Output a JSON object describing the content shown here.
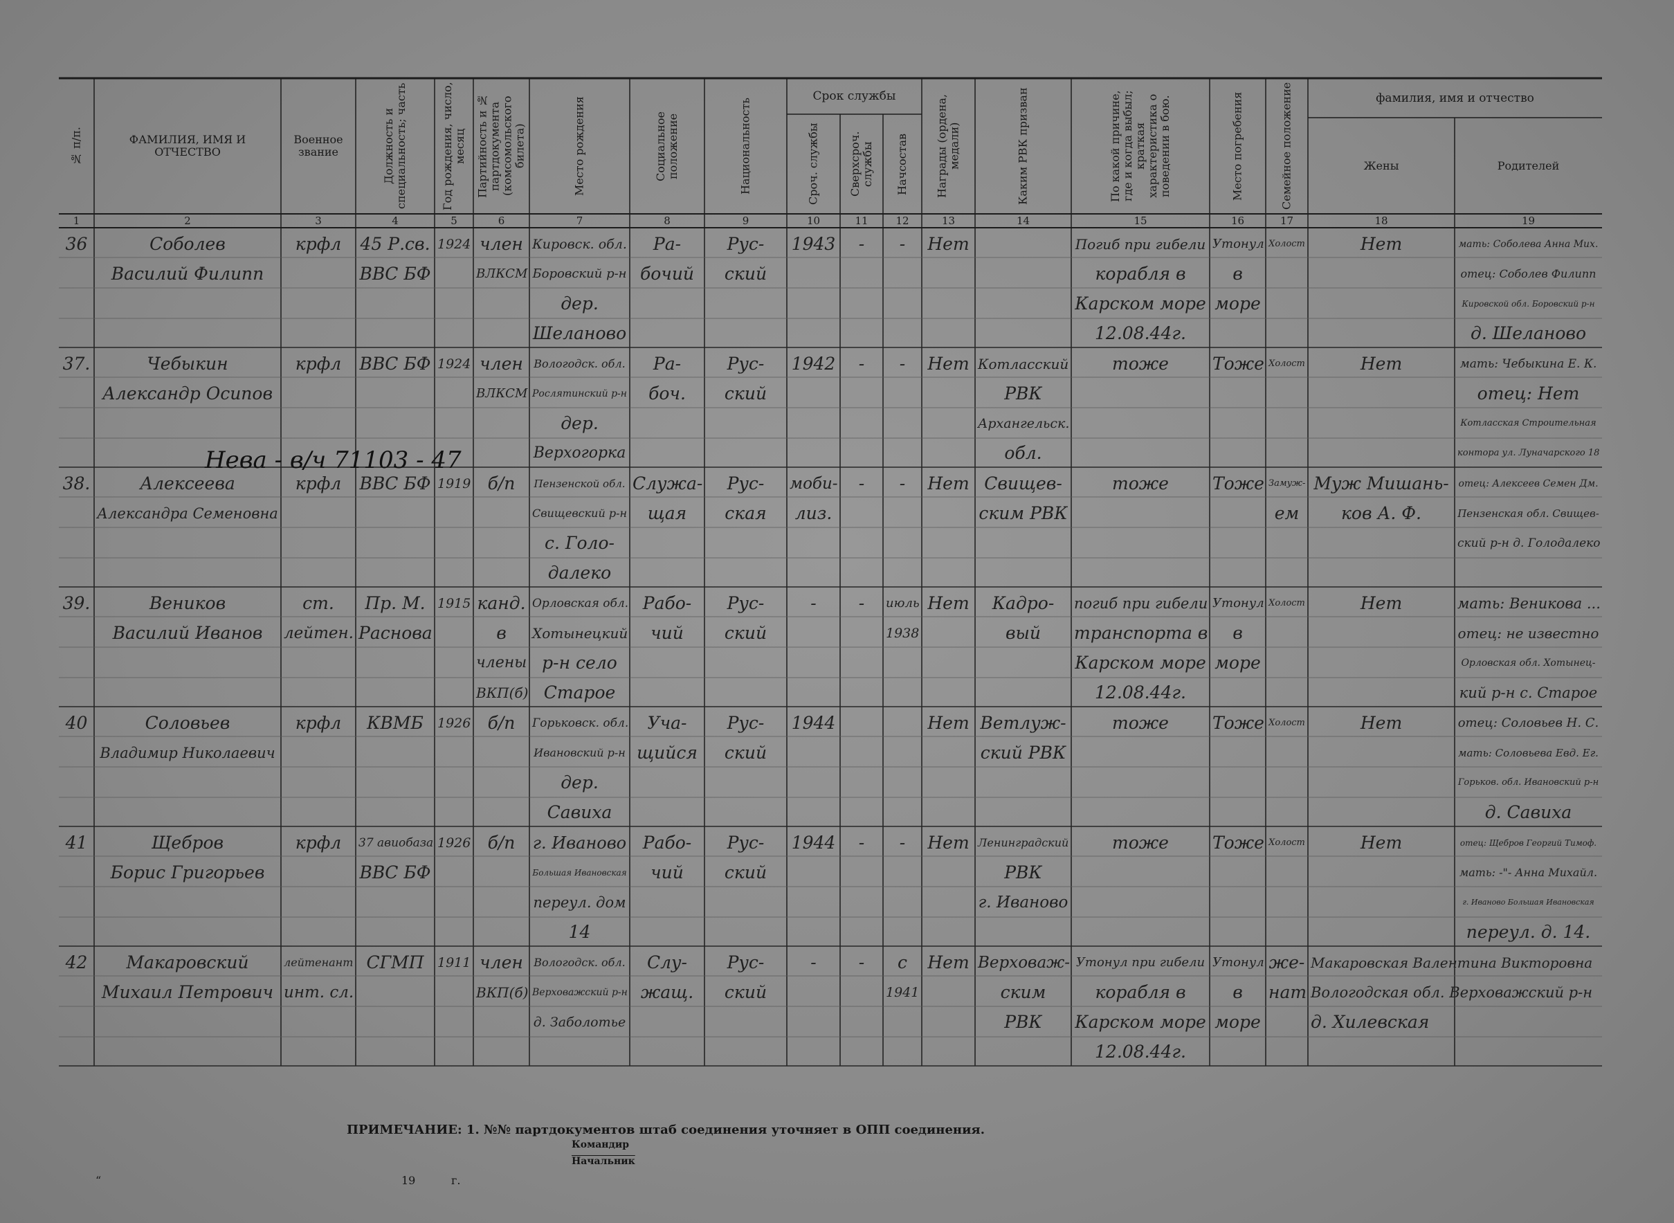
{
  "header": {
    "columns": [
      "№ п/п.",
      "ФАМИЛИЯ, ИМЯ И ОТЧЕСТВО",
      "Военное звание",
      "Должность и специальность; часть",
      "Год рождения, число, месяц",
      "Партийность и № партдокумента (комсомольского билета)",
      "Место рождения",
      "Социальное положение",
      "Национальность",
      "Сроч. службы",
      "Сверхсроч. службы",
      "Начсостав",
      "Награды (ордена, медали)",
      "Каким РВК призван",
      "По какой причине, где и когда выбыл; краткая характеристика о поведении в бою.",
      "Место погребения",
      "Семейное положение",
      "Жены",
      "Родителей"
    ],
    "groups": [
      "Срок службы",
      "фамилия, имя и отчество"
    ],
    "numbers": [
      "1",
      "2",
      "3",
      "4",
      "5",
      "6",
      "7",
      "8",
      "9",
      "10",
      "11",
      "12",
      "13",
      "14",
      "15",
      "16",
      "17",
      "18",
      "19"
    ]
  },
  "rows": [
    {
      "cells": [
        [
          "36"
        ],
        [
          "Соболев",
          "Василий Филипп"
        ],
        [
          "крфл"
        ],
        [
          "45 Р.св.",
          "ВВС БФ"
        ],
        [
          "1924"
        ],
        [
          "член",
          "ВЛКСМ"
        ],
        [
          "Кировск. обл.",
          "Боровский р-н",
          "дер.",
          "Шеланово"
        ],
        [
          "Ра-",
          "бочий"
        ],
        [
          "Рус-",
          "ский"
        ],
        [
          "1943"
        ],
        [
          "-"
        ],
        [
          "-"
        ],
        [
          "Нет"
        ],
        [],
        [
          "Погиб при гибели",
          "корабля в",
          "Карском море",
          "12.08.44г."
        ],
        [
          "Утонул",
          "в",
          "море"
        ],
        [
          "Холост"
        ],
        [
          "Нет"
        ],
        [
          "мать: Соболева Анна Мих.",
          "отец: Соболев Филипп",
          "Кировской обл. Боровский р-н",
          "д. Шеланово"
        ]
      ]
    },
    {
      "cells": [
        [
          "37."
        ],
        [
          "Чебыкин",
          "Александр Осипов"
        ],
        [
          "крфл"
        ],
        [
          "ВВС БФ"
        ],
        [
          "1924"
        ],
        [
          "член",
          "ВЛКСМ"
        ],
        [
          "Вологодск. обл.",
          "Рослятинский р-н",
          "дер.",
          "Верхогорка"
        ],
        [
          "Ра-",
          "боч."
        ],
        [
          "Рус-",
          "ский"
        ],
        [
          "1942"
        ],
        [
          "-"
        ],
        [
          "-"
        ],
        [
          "Нет"
        ],
        [
          "Котласский",
          "РВК",
          "Архангельск.",
          "обл."
        ],
        [
          "тоже"
        ],
        [
          "Тоже"
        ],
        [
          "Холост"
        ],
        [
          "Нет"
        ],
        [
          "мать: Чебыкина Е. К.",
          "отец: Нет",
          "Котласская Строительная",
          "контора ул. Луначарского 18"
        ]
      ]
    },
    {
      "correction": "Нева - в/ч 71103 - 47",
      "cells": [
        [
          "38."
        ],
        [
          "Алексеева",
          "Александра Семеновна"
        ],
        [
          "крфл"
        ],
        [
          "ВВС БФ"
        ],
        [
          "1919"
        ],
        [
          "б/п"
        ],
        [
          "Пензенской обл.",
          "Свищевский р-н",
          "с. Голо-",
          "далеко"
        ],
        [
          "Служа-",
          "щая"
        ],
        [
          "Рус-",
          "ская"
        ],
        [
          "моби-",
          "лиз."
        ],
        [
          "-"
        ],
        [
          "-"
        ],
        [
          "Нет"
        ],
        [
          "Свищев-",
          "ским РВК"
        ],
        [
          "тоже"
        ],
        [
          "Тоже"
        ],
        [
          "Замуж-",
          "ем"
        ],
        [
          "Муж Мишань-",
          "ков А. Ф."
        ],
        [
          "отец: Алексеев Семен Дм.",
          "Пензенская обл. Свищев-",
          "ский р-н д. Голодалеко"
        ]
      ]
    },
    {
      "cells": [
        [
          "39."
        ],
        [
          "Веников",
          "Василий Иванов"
        ],
        [
          "ст.",
          "лейтен."
        ],
        [
          "Пр. М.",
          "Раснова"
        ],
        [
          "1915"
        ],
        [
          "канд.",
          "в",
          "члены",
          "ВКП(б)"
        ],
        [
          "Орловская обл.",
          "Хотынецкий",
          "р-н село",
          "Старое"
        ],
        [
          "Рабо-",
          "чий"
        ],
        [
          "Рус-",
          "ский"
        ],
        [
          "-"
        ],
        [
          "-"
        ],
        [
          "июль",
          "1938"
        ],
        [
          "Нет"
        ],
        [
          "Кадро-",
          "вый"
        ],
        [
          "погиб при гибели",
          "транспорта в",
          "Карском море",
          "12.08.44г."
        ],
        [
          "Утонул",
          "в",
          "море"
        ],
        [
          "Холост"
        ],
        [
          "Нет"
        ],
        [
          "мать: Веникова ...",
          "отец: не известно",
          "Орловская обл. Хотынец-",
          "кий р-н с. Старое"
        ]
      ]
    },
    {
      "cells": [
        [
          "40"
        ],
        [
          "Соловьев",
          "Владимир Николаевич"
        ],
        [
          "крфл"
        ],
        [
          "КВМБ"
        ],
        [
          "1926"
        ],
        [
          "б/п"
        ],
        [
          "Горьковск. обл.",
          "Ивановский р-н",
          "дер.",
          "Савиха"
        ],
        [
          "Уча-",
          "щийся"
        ],
        [
          "Рус-",
          "ский"
        ],
        [
          "1944"
        ],
        [],
        [],
        [
          "Нет"
        ],
        [
          "Ветлуж-",
          "ский РВК"
        ],
        [
          "тоже"
        ],
        [
          "Тоже"
        ],
        [
          "Холост"
        ],
        [
          "Нет"
        ],
        [
          "отец: Соловьев Н. С.",
          "мать: Соловьева Евд. Ег.",
          "Горьков. обл. Ивановский р-н",
          "д. Савиха"
        ]
      ]
    },
    {
      "cells": [
        [
          "41"
        ],
        [
          "Щебров",
          "Борис Григорьев"
        ],
        [
          "крфл"
        ],
        [
          "37 авиобаза",
          "ВВС БФ"
        ],
        [
          "1926"
        ],
        [
          "б/п"
        ],
        [
          "г. Иваново",
          "Большая Ивановская",
          "переул. дом",
          "14"
        ],
        [
          "Рабо-",
          "чий"
        ],
        [
          "Рус-",
          "ский"
        ],
        [
          "1944"
        ],
        [
          "-"
        ],
        [
          "-"
        ],
        [
          "Нет"
        ],
        [
          "Ленинградский",
          "РВК",
          "г. Иваново"
        ],
        [
          "тоже"
        ],
        [
          "Тоже"
        ],
        [
          "Холост"
        ],
        [
          "Нет"
        ],
        [
          "отец: Щебров Георгий Тимоф.",
          "мать: -\"- Анна Михайл.",
          "г. Иваново Большая Ивановская",
          "переул. д. 14."
        ]
      ]
    },
    {
      "cells": [
        [
          "42"
        ],
        [
          "Макаровский",
          "Михаил Петрович"
        ],
        [
          "лейтенант",
          "инт. сл."
        ],
        [
          "СГМП"
        ],
        [
          "1911"
        ],
        [
          "член",
          "ВКП(б)"
        ],
        [
          "Вологодск. обл.",
          "Верховажский р-н",
          "д. Заболотье"
        ],
        [
          "Слу-",
          "жащ."
        ],
        [
          "Рус-",
          "ский"
        ],
        [
          "-"
        ],
        [
          "-"
        ],
        [
          "с",
          "1941"
        ],
        [
          "Нет"
        ],
        [
          "Верховаж-",
          "ским",
          "РВК"
        ],
        [
          "Утонул при гибели",
          "корабля в",
          "Карском море",
          "12.08.44г."
        ],
        [
          "Утонул",
          "в",
          "море"
        ],
        [
          "же-",
          "нат"
        ],
        [
          "Макаровская Валентина Викторовна",
          "Вологодская обл. Верховажский р-н",
          "д. Хилевская"
        ],
        []
      ]
    }
  ],
  "note": "ПРИМЕЧАНИЕ: 1. №№ партдокументов штаб соединения уточняет в ОПП соединения.",
  "signatures": [
    "Командир",
    "Начальник"
  ],
  "date_line": {
    "quote": "“",
    "year": "19",
    "suffix": "г."
  }
}
